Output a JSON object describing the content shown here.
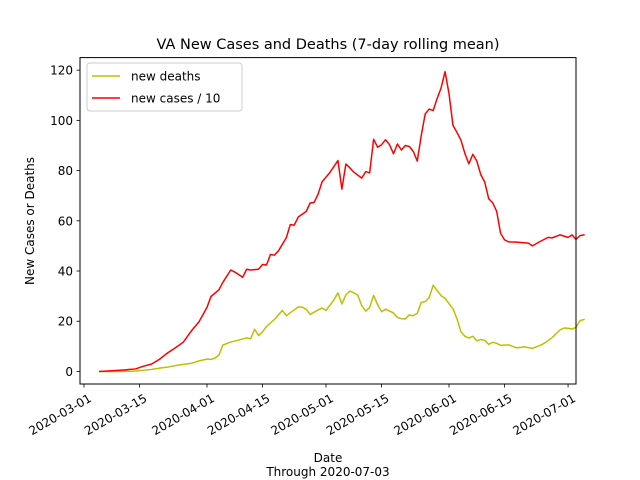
{
  "chart_data": {
    "type": "line",
    "title": "VA New Cases and Deaths (7-day rolling mean)",
    "xlabel": "Date",
    "xlabel_sub": "Through 2020-07-03",
    "ylabel": "New Cases or Deaths",
    "xlim": [
      "2020-02-29",
      "2020-07-03"
    ],
    "ylim": [
      -5,
      125
    ],
    "grid": false,
    "legend_position": "top-left",
    "x_ticks": [
      "2020-03-01",
      "2020-03-15",
      "2020-04-01",
      "2020-04-15",
      "2020-05-01",
      "2020-05-15",
      "2020-06-01",
      "2020-06-15",
      "2020-07-01"
    ],
    "y_ticks": [
      0,
      20,
      40,
      60,
      80,
      100,
      120
    ],
    "series": [
      {
        "name": "new deaths",
        "color": "#bfbf00",
        "points": [
          [
            "2020-03-05",
            0.0
          ],
          [
            "2020-03-10",
            0.0
          ],
          [
            "2020-03-13",
            0.1
          ],
          [
            "2020-03-15",
            0.3
          ],
          [
            "2020-03-18",
            0.8
          ],
          [
            "2020-03-20",
            1.3
          ],
          [
            "2020-03-22",
            1.7
          ],
          [
            "2020-03-24",
            2.3
          ],
          [
            "2020-03-26",
            2.8
          ],
          [
            "2020-03-28",
            3.2
          ],
          [
            "2020-03-30",
            4.2
          ],
          [
            "2020-04-01",
            4.9
          ],
          [
            "2020-04-02",
            4.8
          ],
          [
            "2020-04-03",
            5.3
          ],
          [
            "2020-04-04",
            6.5
          ],
          [
            "2020-04-05",
            10.5
          ],
          [
            "2020-04-07",
            11.7
          ],
          [
            "2020-04-09",
            12.5
          ],
          [
            "2020-04-11",
            13.4
          ],
          [
            "2020-04-12",
            13.0
          ],
          [
            "2020-04-13",
            16.8
          ],
          [
            "2020-04-14",
            14.3
          ],
          [
            "2020-04-15",
            15.8
          ],
          [
            "2020-04-16",
            17.9
          ],
          [
            "2020-04-18",
            20.7
          ],
          [
            "2020-04-20",
            24.3
          ],
          [
            "2020-04-21",
            22.2
          ],
          [
            "2020-04-22",
            23.4
          ],
          [
            "2020-04-24",
            25.7
          ],
          [
            "2020-04-25",
            25.6
          ],
          [
            "2020-04-26",
            24.8
          ],
          [
            "2020-04-27",
            22.7
          ],
          [
            "2020-04-29",
            24.5
          ],
          [
            "2020-04-30",
            25.3
          ],
          [
            "2020-05-01",
            24.3
          ],
          [
            "2020-05-03",
            28.5
          ],
          [
            "2020-05-04",
            31.3
          ],
          [
            "2020-05-05",
            26.9
          ],
          [
            "2020-05-06",
            30.5
          ],
          [
            "2020-05-07",
            32.0
          ],
          [
            "2020-05-08",
            31.3
          ],
          [
            "2020-05-09",
            30.4
          ],
          [
            "2020-05-10",
            26.2
          ],
          [
            "2020-05-11",
            24.0
          ],
          [
            "2020-05-12",
            25.5
          ],
          [
            "2020-05-13",
            30.3
          ],
          [
            "2020-05-14",
            26.6
          ],
          [
            "2020-05-15",
            23.8
          ],
          [
            "2020-05-16",
            24.8
          ],
          [
            "2020-05-18",
            23.3
          ],
          [
            "2020-05-19",
            21.5
          ],
          [
            "2020-05-20",
            21.0
          ],
          [
            "2020-05-21",
            20.9
          ],
          [
            "2020-05-22",
            22.5
          ],
          [
            "2020-05-23",
            22.2
          ],
          [
            "2020-05-24",
            23.2
          ],
          [
            "2020-05-25",
            27.5
          ],
          [
            "2020-05-26",
            27.8
          ],
          [
            "2020-05-27",
            29.4
          ],
          [
            "2020-05-28",
            34.3
          ],
          [
            "2020-05-29",
            32.3
          ],
          [
            "2020-05-30",
            30.2
          ],
          [
            "2020-05-31",
            29.1
          ],
          [
            "2020-06-01",
            27.0
          ],
          [
            "2020-06-02",
            25.0
          ],
          [
            "2020-06-03",
            21.0
          ],
          [
            "2020-06-04",
            15.8
          ],
          [
            "2020-06-05",
            14.0
          ],
          [
            "2020-06-06",
            13.3
          ],
          [
            "2020-06-07",
            14.0
          ],
          [
            "2020-06-08",
            12.2
          ],
          [
            "2020-06-09",
            12.7
          ],
          [
            "2020-06-10",
            12.4
          ],
          [
            "2020-06-11",
            10.8
          ],
          [
            "2020-06-12",
            11.6
          ],
          [
            "2020-06-13",
            11.2
          ],
          [
            "2020-06-14",
            10.4
          ],
          [
            "2020-06-16",
            10.6
          ],
          [
            "2020-06-18",
            9.4
          ],
          [
            "2020-06-20",
            9.8
          ],
          [
            "2020-06-22",
            9.2
          ],
          [
            "2020-06-24",
            10.4
          ],
          [
            "2020-06-25",
            11.2
          ],
          [
            "2020-06-27",
            13.5
          ],
          [
            "2020-06-29",
            16.6
          ],
          [
            "2020-06-30",
            17.3
          ],
          [
            "2020-07-01",
            17.2
          ],
          [
            "2020-07-02",
            16.9
          ],
          [
            "2020-07-03",
            17.6
          ],
          [
            "2020-07-04",
            20.2
          ],
          [
            "2020-07-05",
            20.7
          ]
        ]
      },
      {
        "name": "new cases / 10",
        "color": "#ff0000",
        "points": [
          [
            "2020-03-05",
            0.0
          ],
          [
            "2020-03-08",
            0.3
          ],
          [
            "2020-03-11",
            0.6
          ],
          [
            "2020-03-14",
            1.0
          ],
          [
            "2020-03-16",
            2.1
          ],
          [
            "2020-03-18",
            2.9
          ],
          [
            "2020-03-20",
            4.8
          ],
          [
            "2020-03-22",
            7.3
          ],
          [
            "2020-03-24",
            9.4
          ],
          [
            "2020-03-26",
            11.6
          ],
          [
            "2020-03-28",
            16.0
          ],
          [
            "2020-03-30",
            19.8
          ],
          [
            "2020-04-01",
            25.5
          ],
          [
            "2020-04-02",
            29.8
          ],
          [
            "2020-04-04",
            32.5
          ],
          [
            "2020-04-05",
            35.5
          ],
          [
            "2020-04-07",
            40.4
          ],
          [
            "2020-04-08",
            39.6
          ],
          [
            "2020-04-10",
            37.5
          ],
          [
            "2020-04-11",
            40.7
          ],
          [
            "2020-04-12",
            40.4
          ],
          [
            "2020-04-14",
            40.7
          ],
          [
            "2020-04-15",
            42.6
          ],
          [
            "2020-04-16",
            42.4
          ],
          [
            "2020-04-17",
            46.6
          ],
          [
            "2020-04-18",
            46.3
          ],
          [
            "2020-04-19",
            48.0
          ],
          [
            "2020-04-21",
            53.3
          ],
          [
            "2020-04-22",
            58.5
          ],
          [
            "2020-04-23",
            58.3
          ],
          [
            "2020-04-24",
            61.5
          ],
          [
            "2020-04-26",
            63.7
          ],
          [
            "2020-04-27",
            67.1
          ],
          [
            "2020-04-28",
            67.3
          ],
          [
            "2020-04-29",
            70.6
          ],
          [
            "2020-04-30",
            75.5
          ],
          [
            "2020-05-02",
            79.3
          ],
          [
            "2020-05-04",
            84.0
          ],
          [
            "2020-05-05",
            72.6
          ],
          [
            "2020-05-06",
            82.6
          ],
          [
            "2020-05-07",
            81.1
          ],
          [
            "2020-05-08",
            79.4
          ],
          [
            "2020-05-10",
            77.0
          ],
          [
            "2020-05-11",
            79.6
          ],
          [
            "2020-05-12",
            79.1
          ],
          [
            "2020-05-13",
            92.5
          ],
          [
            "2020-05-14",
            89.3
          ],
          [
            "2020-05-15",
            90.3
          ],
          [
            "2020-05-16",
            92.3
          ],
          [
            "2020-05-17",
            90.3
          ],
          [
            "2020-05-18",
            86.7
          ],
          [
            "2020-05-19",
            90.6
          ],
          [
            "2020-05-20",
            88.2
          ],
          [
            "2020-05-21",
            90.0
          ],
          [
            "2020-05-22",
            89.6
          ],
          [
            "2020-05-23",
            87.6
          ],
          [
            "2020-05-24",
            83.8
          ],
          [
            "2020-05-25",
            94.0
          ],
          [
            "2020-05-26",
            102.6
          ],
          [
            "2020-05-27",
            104.5
          ],
          [
            "2020-05-28",
            103.9
          ],
          [
            "2020-05-29",
            108.7
          ],
          [
            "2020-05-30",
            112.9
          ],
          [
            "2020-05-31",
            119.4
          ],
          [
            "2020-06-01",
            110.6
          ],
          [
            "2020-06-02",
            98.0
          ],
          [
            "2020-06-03",
            95.2
          ],
          [
            "2020-06-04",
            92.1
          ],
          [
            "2020-06-05",
            86.8
          ],
          [
            "2020-06-06",
            82.7
          ],
          [
            "2020-06-07",
            86.5
          ],
          [
            "2020-06-08",
            83.8
          ],
          [
            "2020-06-09",
            78.4
          ],
          [
            "2020-06-10",
            75.4
          ],
          [
            "2020-06-11",
            68.8
          ],
          [
            "2020-06-12",
            67.2
          ],
          [
            "2020-06-13",
            63.8
          ],
          [
            "2020-06-14",
            55.0
          ],
          [
            "2020-06-15",
            52.4
          ],
          [
            "2020-06-16",
            51.6
          ],
          [
            "2020-06-18",
            51.5
          ],
          [
            "2020-06-21",
            51.1
          ],
          [
            "2020-06-22",
            50.0
          ],
          [
            "2020-06-24",
            51.8
          ],
          [
            "2020-06-26",
            53.4
          ],
          [
            "2020-06-27",
            53.2
          ],
          [
            "2020-06-29",
            54.4
          ],
          [
            "2020-06-30",
            53.9
          ],
          [
            "2020-07-01",
            53.4
          ],
          [
            "2020-07-02",
            54.4
          ],
          [
            "2020-07-03",
            52.6
          ],
          [
            "2020-07-04",
            54.1
          ],
          [
            "2020-07-05",
            54.4
          ]
        ]
      }
    ]
  }
}
